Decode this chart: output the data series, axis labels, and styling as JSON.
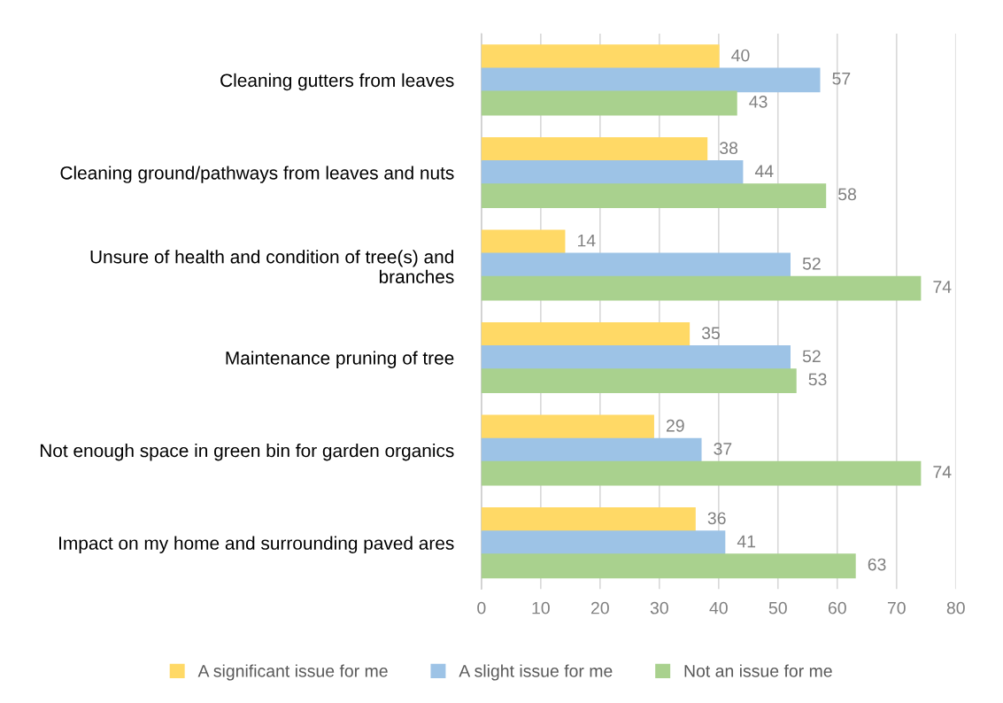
{
  "chart_data": {
    "type": "bar",
    "orientation": "horizontal",
    "categories": [
      "Cleaning gutters from leaves",
      "Cleaning ground/pathways from leaves and nuts",
      "Unsure of health and condition of tree(s) and branches",
      "Maintenance pruning of tree",
      "Not enough space in green bin for garden organics",
      "Impact on my home and surrounding paved ares"
    ],
    "series": [
      {
        "name": "A significant issue for me",
        "color": "#ffd966",
        "values": [
          40,
          38,
          14,
          35,
          29,
          36
        ]
      },
      {
        "name": "A slight issue for me",
        "color": "#9dc3e6",
        "values": [
          57,
          44,
          52,
          52,
          37,
          41
        ]
      },
      {
        "name": "Not an issue for me",
        "color": "#a9d18e",
        "values": [
          43,
          58,
          74,
          53,
          74,
          63
        ]
      }
    ],
    "xlim": [
      0,
      80
    ],
    "xticks": [
      0,
      10,
      20,
      30,
      40,
      50,
      60,
      70,
      80
    ],
    "grid": "x",
    "legend": "bottom",
    "data_labels": true
  }
}
